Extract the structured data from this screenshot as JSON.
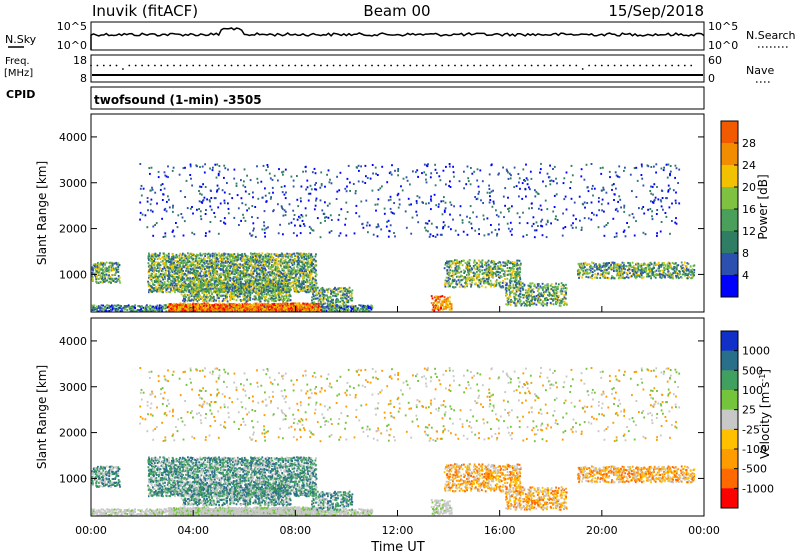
{
  "header": {
    "station": "Inuvik (fitACF)",
    "beam": "Beam 00",
    "date": "15/Sep/2018"
  },
  "info_panels": {
    "nsky_label": "N.Sky",
    "nsky_top": "10^5",
    "nsky_bottom": "10^0",
    "nsearch_top": "10^5",
    "nsearch_bottom": "10^0",
    "nsearch_label": "N.Search",
    "freq_label_line1": "Freq.",
    "freq_label_line2": "[MHz]",
    "freq_top": "18",
    "freq_bottom": "8",
    "nave_top": "60",
    "nave_bottom": "0",
    "nave_label": "Nave",
    "cpid_label": "CPID",
    "cpid_value": "twofsound (1-min) -3505"
  },
  "colors": {
    "power_scale": [
      "#0000ff",
      "#2c4fb0",
      "#2f7d63",
      "#4aa05a",
      "#7fc241",
      "#f2c200",
      "#f28c00",
      "#f25a00",
      "#ff0000"
    ],
    "velocity_scale": [
      "#ff0000",
      "#ff6a00",
      "#ff9c00",
      "#ffc000",
      "#c8c8c8",
      "#74c43c",
      "#40a060",
      "#2a6f8a",
      "#1030c8"
    ]
  },
  "chart_data": [
    {
      "type": "heatmap",
      "name": "power",
      "ylabel": "Slant Range [km]",
      "yticks": [
        1000,
        2000,
        3000,
        4000
      ],
      "ylim": [
        180,
        4500
      ],
      "xlim": [
        0,
        24
      ],
      "colorbar_label": "Power [dB]",
      "colorbar_ticks": [
        "4",
        "8",
        "12",
        "16",
        "20",
        "24",
        "28"
      ],
      "clim": [
        0,
        30
      ],
      "grid": false
    },
    {
      "type": "heatmap",
      "name": "velocity",
      "ylabel": "Slant Range [km]",
      "yticks": [
        1000,
        2000,
        3000,
        4000
      ],
      "ylim": [
        180,
        4500
      ],
      "xlim": [
        0,
        24
      ],
      "xticks": [
        "00:00",
        "04:00",
        "08:00",
        "12:00",
        "16:00",
        "20:00",
        "00:00"
      ],
      "xlabel": "Time UT",
      "colorbar_label": "Velocity [m s",
      "colorbar_label_sup": "-1",
      "colorbar_ticks": [
        "1000",
        "500",
        "100",
        "25",
        "-25",
        "-100",
        "-500",
        "-1000"
      ],
      "grid": false
    }
  ]
}
